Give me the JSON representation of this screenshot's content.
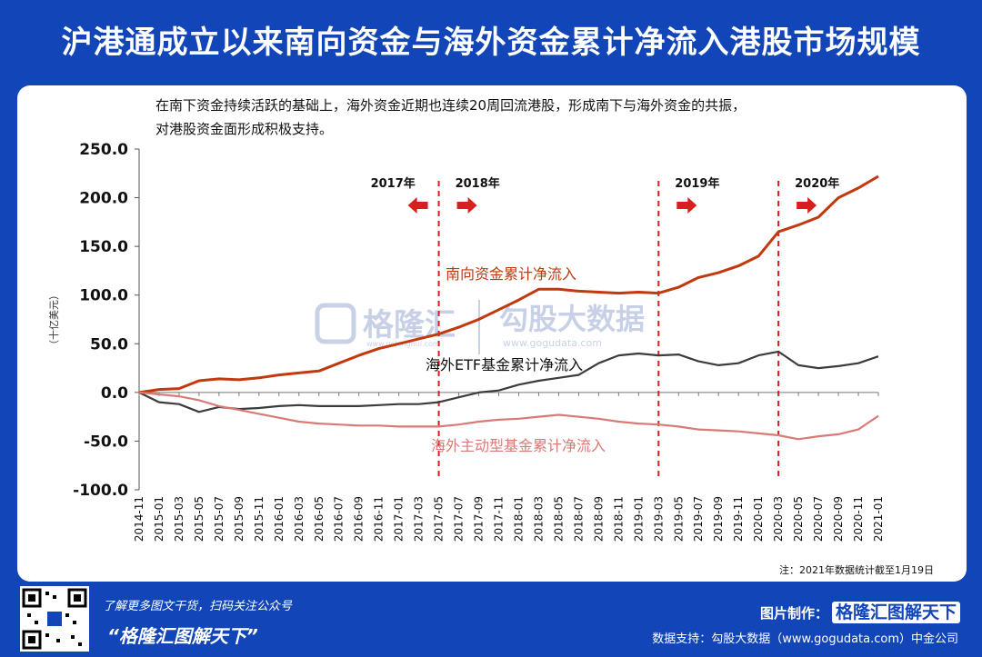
{
  "title": "沪港通成立以来南向资金与海外资金累计净流入港股市场规模",
  "subtitle_line1": "在南下资金持续活跃的基础上，海外资金近期也连续20周回流港股，形成南下与海外资金的共振，",
  "subtitle_line2": "对港股资金面形成积极支持。",
  "note": "注：2021年数据统计截至1月19日",
  "watermark": {
    "brand": "格隆汇",
    "brand_url": "www.gelonghui.com",
    "data": "勾股大数据",
    "data_url": "www.gogudata.com"
  },
  "footer": {
    "promo": "了解更多图文干货，扫码关注公众号",
    "slogan": "“格隆汇图解天下”",
    "maker_label": "图片制作：",
    "maker_brand": "格隆汇图解天下",
    "source": "数据支持：勾股大数据（www.gogudata.com）中金公司",
    "corner": "格隆汇"
  },
  "colors": {
    "southbound": "#c1390f",
    "etf": "#3c3c3c",
    "active": "#d87a76",
    "marker": "#d81e1e",
    "background": "#1246b8"
  },
  "chart_data": {
    "type": "line",
    "ylabel": "（十亿美元）",
    "ylim": [
      -100,
      250
    ],
    "yticks": [
      "250.0",
      "200.0",
      "150.0",
      "100.0",
      "50.0",
      "0.0",
      "-50.0",
      "-100.0"
    ],
    "x": [
      "2014-11",
      "2015-01",
      "2015-03",
      "2015-05",
      "2015-07",
      "2015-09",
      "2015-11",
      "2016-01",
      "2016-03",
      "2016-05",
      "2016-07",
      "2016-09",
      "2016-11",
      "2017-01",
      "2017-03",
      "2017-05",
      "2017-07",
      "2017-09",
      "2017-11",
      "2018-01",
      "2018-03",
      "2018-05",
      "2018-07",
      "2018-09",
      "2018-11",
      "2019-01",
      "2019-03",
      "2019-05",
      "2019-07",
      "2019-09",
      "2019-11",
      "2020-01",
      "2020-03",
      "2020-05",
      "2020-07",
      "2020-09",
      "2020-11",
      "2021-01"
    ],
    "series": [
      {
        "name": "南向资金累计净流入",
        "values": [
          0,
          3,
          4,
          12,
          14,
          13,
          15,
          18,
          20,
          22,
          30,
          38,
          45,
          50,
          55,
          60,
          67,
          75,
          85,
          95,
          106,
          106,
          104,
          103,
          102,
          103,
          102,
          108,
          118,
          123,
          130,
          140,
          165,
          172,
          180,
          200,
          210,
          222
        ]
      },
      {
        "name": "海外ETF基金累计净流入",
        "values": [
          0,
          -10,
          -12,
          -20,
          -15,
          -17,
          -16,
          -14,
          -13,
          -14,
          -14,
          -14,
          -13,
          -12,
          -12,
          -10,
          -5,
          0,
          2,
          8,
          12,
          15,
          18,
          30,
          38,
          40,
          38,
          39,
          32,
          28,
          30,
          38,
          42,
          28,
          25,
          27,
          30,
          37
        ]
      },
      {
        "name": "海外主动型基金累计净流入",
        "values": [
          0,
          -2,
          -4,
          -8,
          -14,
          -18,
          -22,
          -26,
          -30,
          -32,
          -33,
          -34,
          -34,
          -35,
          -35,
          -35,
          -33,
          -30,
          -28,
          -27,
          -25,
          -23,
          -25,
          -27,
          -30,
          -32,
          -33,
          -35,
          -38,
          -39,
          -40,
          -42,
          -44,
          -48,
          -45,
          -43,
          -38,
          -24
        ]
      }
    ],
    "events": [
      {
        "label": "2017年",
        "x_index": 15,
        "direction": "left"
      },
      {
        "label": "2018年",
        "x_index": 15,
        "direction": "right"
      },
      {
        "label": "2019年",
        "x_index": 26,
        "direction": "right"
      },
      {
        "label": "2020年",
        "x_index": 32,
        "direction": "right"
      }
    ]
  }
}
